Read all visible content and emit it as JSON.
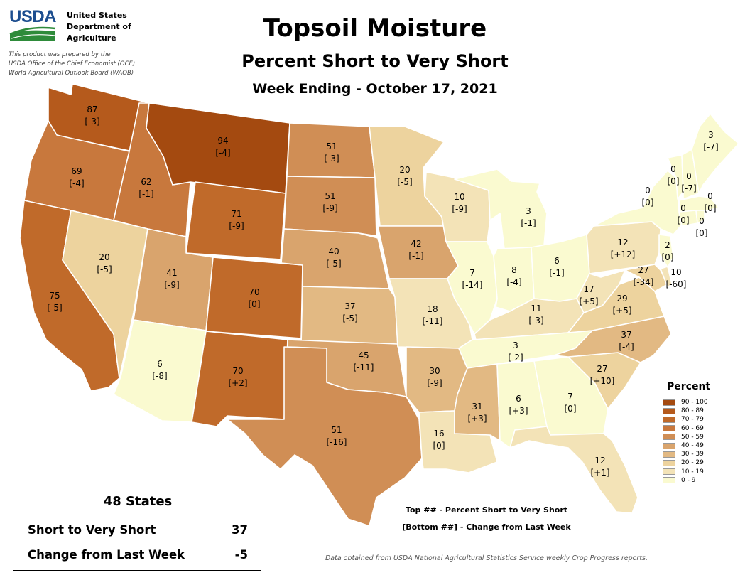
{
  "agency": {
    "logo_text": "USDA",
    "line1": "United States",
    "line2": "Department of",
    "line3": "Agriculture"
  },
  "credit": {
    "line1": "This product was prepared by the",
    "line2": "USDA Office of the Chief Economist (OCE)",
    "line3": "World Agricultural Outlook Board (WAOB)"
  },
  "title": "Topsoil Moisture",
  "subtitle": "Percent Short to Very Short",
  "week": "Week Ending - October 17, 2021",
  "legend": {
    "title": "Percent",
    "classes": [
      {
        "label": "90 - 100",
        "color": "#a44a10"
      },
      {
        "label": "80 - 89",
        "color": "#b55a1c"
      },
      {
        "label": "70 - 79",
        "color": "#c06a2a"
      },
      {
        "label": "60 - 69",
        "color": "#c8783d"
      },
      {
        "label": "50 - 59",
        "color": "#d08e55"
      },
      {
        "label": "40 - 49",
        "color": "#d9a46d"
      },
      {
        "label": "30 - 39",
        "color": "#e2b983"
      },
      {
        "label": "20 - 29",
        "color": "#edd39e"
      },
      {
        "label": "10 - 19",
        "color": "#f3e3b7"
      },
      {
        "label": "0 - 9",
        "color": "#fafad0"
      }
    ]
  },
  "states": {
    "WA": {
      "top": "87",
      "bottom": "[-3]"
    },
    "OR": {
      "top": "69",
      "bottom": "[-4]"
    },
    "ID": {
      "top": "62",
      "bottom": "[-1]"
    },
    "MT": {
      "top": "94",
      "bottom": "[-4]"
    },
    "ND": {
      "top": "51",
      "bottom": "[-3]"
    },
    "SD": {
      "top": "51",
      "bottom": "[-9]"
    },
    "WY": {
      "top": "71",
      "bottom": "[-9]"
    },
    "NV": {
      "top": "20",
      "bottom": "[-5]"
    },
    "CA": {
      "top": "75",
      "bottom": "[-5]"
    },
    "UT": {
      "top": "41",
      "bottom": "[-9]"
    },
    "CO": {
      "top": "70",
      "bottom": "[0]"
    },
    "NE": {
      "top": "40",
      "bottom": "[-5]"
    },
    "KS": {
      "top": "37",
      "bottom": "[-5]"
    },
    "AZ": {
      "top": "6",
      "bottom": "[-8]"
    },
    "NM": {
      "top": "70",
      "bottom": "[+2]"
    },
    "OK": {
      "top": "45",
      "bottom": "[-11]"
    },
    "TX": {
      "top": "51",
      "bottom": "[-16]"
    },
    "MN": {
      "top": "20",
      "bottom": "[-5]"
    },
    "IA": {
      "top": "42",
      "bottom": "[-1]"
    },
    "MO": {
      "top": "18",
      "bottom": "[-11]"
    },
    "AR": {
      "top": "30",
      "bottom": "[-9]"
    },
    "LA": {
      "top": "16",
      "bottom": "[0]"
    },
    "WI": {
      "top": "10",
      "bottom": "[-9]"
    },
    "IL": {
      "top": "7",
      "bottom": "[-14]"
    },
    "MI": {
      "top": "3",
      "bottom": "[-1]"
    },
    "IN": {
      "top": "8",
      "bottom": "[-4]"
    },
    "OH": {
      "top": "6",
      "bottom": "[-1]"
    },
    "KY": {
      "top": "11",
      "bottom": "[-3]"
    },
    "TN": {
      "top": "3",
      "bottom": "[-2]"
    },
    "MS": {
      "top": "31",
      "bottom": "[+3]"
    },
    "AL": {
      "top": "6",
      "bottom": "[+3]"
    },
    "GA": {
      "top": "7",
      "bottom": "[0]"
    },
    "FL": {
      "top": "12",
      "bottom": "[+1]"
    },
    "SC": {
      "top": "27",
      "bottom": "[+10]"
    },
    "NC": {
      "top": "37",
      "bottom": "[-4]"
    },
    "VA": {
      "top": "29",
      "bottom": "[+5]"
    },
    "WV": {
      "top": "17",
      "bottom": "[+5]"
    },
    "PA": {
      "top": "12",
      "bottom": "[+12]"
    },
    "MD": {
      "top": "27",
      "bottom": "[-34]"
    },
    "DE": {
      "top": "10",
      "bottom": "[-60]"
    },
    "NJ": {
      "top": "2",
      "bottom": "[0]"
    },
    "NY": {
      "top": "0",
      "bottom": "[0]"
    },
    "VT": {
      "top": "0",
      "bottom": "[0]"
    },
    "NH": {
      "top": "0",
      "bottom": "[-7]"
    },
    "ME": {
      "top": "3",
      "bottom": "[-7]"
    },
    "MA": {
      "top": "0",
      "bottom": "[0]"
    },
    "CT": {
      "top": "0",
      "bottom": "[0]"
    },
    "RI": {
      "top": "0",
      "bottom": "[0]"
    }
  },
  "summary": {
    "title": "48 States",
    "row1_label": "Short to Very Short",
    "row1_value": "37",
    "row2_label": "Change from Last Week",
    "row2_value": "-5"
  },
  "note_top": "Top ## - Percent Short to Very Short",
  "note_bottom": "[Bottom ##] - Change from Last Week",
  "source": "Data obtained from USDA National Agricultural Statistics Service weekly Crop Progress reports."
}
